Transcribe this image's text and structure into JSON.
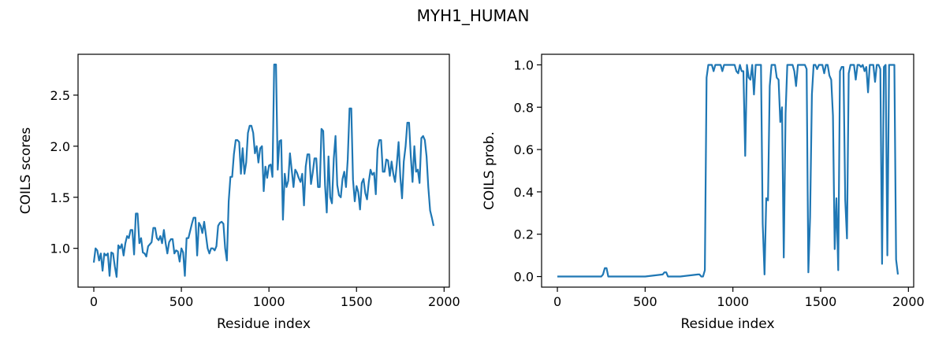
{
  "figure_title": "MYH1_HUMAN",
  "series_color": "#1f77b4",
  "chart_data": [
    {
      "type": "line",
      "title": "",
      "xlabel": "Residue index",
      "ylabel": "COILS scores",
      "xlim": [
        -90,
        2030
      ],
      "ylim": [
        0.62,
        2.9
      ],
      "xticks": [
        0,
        500,
        1000,
        1500,
        2000
      ],
      "xtick_labels": [
        "0",
        "500",
        "1000",
        "1500",
        "2000"
      ],
      "yticks": [
        1.0,
        1.5,
        2.0,
        2.5
      ],
      "ytick_labels": [
        "1.0",
        "1.5",
        "2.0",
        "2.5"
      ],
      "series": [
        {
          "x": [
            0,
            10,
            20,
            30,
            40,
            50,
            60,
            70,
            80,
            90,
            100,
            110,
            120,
            130,
            140,
            150,
            160,
            170,
            180,
            190,
            200,
            210,
            220,
            230,
            240,
            250,
            260,
            270,
            280,
            290,
            300,
            310,
            320,
            330,
            340,
            350,
            360,
            370,
            380,
            390,
            400,
            410,
            420,
            430,
            440,
            450,
            460,
            470,
            480,
            490,
            500,
            510,
            520,
            530,
            540,
            550,
            560,
            570,
            580,
            590,
            600,
            610,
            620,
            630,
            640,
            650,
            660,
            670,
            680,
            690,
            700,
            710,
            720,
            730,
            740,
            750,
            760,
            770,
            780,
            790,
            800,
            810,
            820,
            830,
            840,
            850,
            860,
            870,
            880,
            890,
            900,
            910,
            920,
            930,
            940,
            950,
            960,
            970,
            980,
            990,
            1000,
            1010,
            1020,
            1030,
            1040,
            1050,
            1060,
            1070,
            1080,
            1090,
            1100,
            1110,
            1120,
            1130,
            1140,
            1150,
            1160,
            1170,
            1180,
            1190,
            1200,
            1210,
            1220,
            1230,
            1240,
            1250,
            1260,
            1270,
            1280,
            1290,
            1300,
            1310,
            1320,
            1330,
            1340,
            1350,
            1360,
            1370,
            1380,
            1390,
            1400,
            1410,
            1420,
            1430,
            1440,
            1450,
            1460,
            1470,
            1480,
            1490,
            1500,
            1510,
            1520,
            1530,
            1540,
            1550,
            1560,
            1570,
            1580,
            1590,
            1600,
            1610,
            1620,
            1630,
            1640,
            1650,
            1660,
            1670,
            1680,
            1690,
            1700,
            1710,
            1720,
            1730,
            1740,
            1750,
            1760,
            1770,
            1780,
            1790,
            1800,
            1810,
            1820,
            1830,
            1840,
            1850,
            1860,
            1870,
            1880,
            1890,
            1900,
            1910,
            1920,
            1930,
            1940
          ],
          "y": [
            0.86,
            1.0,
            0.98,
            0.88,
            0.95,
            0.78,
            0.95,
            0.93,
            0.95,
            0.73,
            0.96,
            0.95,
            0.82,
            0.72,
            1.03,
            1.0,
            1.04,
            0.93,
            1.05,
            1.12,
            1.1,
            1.18,
            1.18,
            0.94,
            1.34,
            1.34,
            1.05,
            1.1,
            0.96,
            0.95,
            0.92,
            1.02,
            1.04,
            1.06,
            1.2,
            1.2,
            1.1,
            1.08,
            1.12,
            1.05,
            1.18,
            1.05,
            0.95,
            1.06,
            1.09,
            1.09,
            0.95,
            0.98,
            0.97,
            0.87,
            1.0,
            0.96,
            0.73,
            1.1,
            1.1,
            1.17,
            1.24,
            1.3,
            1.3,
            0.93,
            1.25,
            1.22,
            1.15,
            1.26,
            1.13,
            1.0,
            0.95,
            1.0,
            1.0,
            0.98,
            1.02,
            1.22,
            1.25,
            1.26,
            1.24,
            1.0,
            0.88,
            1.46,
            1.7,
            1.7,
            1.92,
            2.06,
            2.06,
            2.04,
            1.73,
            1.98,
            1.73,
            1.84,
            2.13,
            2.2,
            2.2,
            2.13,
            1.93,
            2.0,
            1.84,
            1.98,
            2.0,
            1.56,
            1.8,
            1.69,
            1.81,
            1.82,
            1.7,
            2.8,
            2.8,
            1.77,
            2.05,
            2.06,
            1.28,
            1.73,
            1.6,
            1.66,
            1.93,
            1.77,
            1.6,
            1.77,
            1.74,
            1.69,
            1.65,
            1.73,
            1.42,
            1.8,
            1.92,
            1.92,
            1.63,
            1.74,
            1.88,
            1.88,
            1.6,
            1.6,
            2.17,
            2.15,
            1.62,
            1.35,
            1.9,
            1.5,
            1.44,
            1.88,
            2.1,
            1.62,
            1.52,
            1.5,
            1.68,
            1.75,
            1.6,
            1.87,
            2.37,
            2.37,
            1.67,
            1.46,
            1.61,
            1.55,
            1.38,
            1.64,
            1.68,
            1.54,
            1.48,
            1.65,
            1.77,
            1.72,
            1.74,
            1.53,
            1.97,
            2.06,
            2.06,
            1.75,
            1.75,
            1.87,
            1.86,
            1.71,
            1.85,
            1.73,
            1.65,
            1.82,
            2.04,
            1.7,
            1.49,
            1.85,
            2.0,
            2.23,
            2.23,
            1.9,
            1.65,
            2.0,
            1.75,
            1.77,
            1.64,
            2.08,
            2.1,
            2.06,
            1.9,
            1.6,
            1.37,
            1.3,
            1.22
          ]
        }
      ]
    },
    {
      "type": "line",
      "title": "",
      "xlabel": "Residue index",
      "ylabel": "COILS prob.",
      "xlim": [
        -90,
        2030
      ],
      "ylim": [
        -0.05,
        1.05
      ],
      "xticks": [
        0,
        500,
        1000,
        1500,
        2000
      ],
      "xtick_labels": [
        "0",
        "500",
        "1000",
        "1500",
        "2000"
      ],
      "yticks": [
        0.0,
        0.2,
        0.4,
        0.6,
        0.8,
        1.0
      ],
      "ytick_labels": [
        "0.0",
        "0.2",
        "0.4",
        "0.6",
        "0.8",
        "1.0"
      ],
      "series": [
        {
          "x": [
            0,
            100,
            200,
            250,
            260,
            270,
            280,
            290,
            300,
            400,
            500,
            600,
            610,
            620,
            630,
            640,
            650,
            700,
            800,
            810,
            820,
            830,
            840,
            850,
            860,
            870,
            880,
            890,
            900,
            910,
            920,
            930,
            940,
            950,
            1000,
            1010,
            1020,
            1030,
            1040,
            1050,
            1060,
            1070,
            1080,
            1090,
            1100,
            1110,
            1120,
            1130,
            1140,
            1150,
            1160,
            1170,
            1180,
            1190,
            1200,
            1210,
            1220,
            1230,
            1240,
            1250,
            1260,
            1270,
            1280,
            1290,
            1300,
            1310,
            1320,
            1330,
            1340,
            1350,
            1360,
            1370,
            1380,
            1390,
            1400,
            1410,
            1420,
            1430,
            1440,
            1450,
            1460,
            1470,
            1480,
            1490,
            1500,
            1510,
            1520,
            1530,
            1540,
            1550,
            1560,
            1570,
            1580,
            1590,
            1600,
            1610,
            1620,
            1630,
            1640,
            1650,
            1660,
            1670,
            1680,
            1690,
            1700,
            1710,
            1720,
            1730,
            1740,
            1750,
            1760,
            1770,
            1780,
            1790,
            1800,
            1810,
            1820,
            1830,
            1840,
            1850,
            1860,
            1870,
            1880,
            1890,
            1900,
            1910,
            1920,
            1930,
            1940
          ],
          "y": [
            0.0,
            0.0,
            0.0,
            0.0,
            0.01,
            0.04,
            0.04,
            0.0,
            0.0,
            0.0,
            0.0,
            0.01,
            0.02,
            0.02,
            0.0,
            0.0,
            0.0,
            0.0,
            0.01,
            0.01,
            0.0,
            0.0,
            0.03,
            0.94,
            1.0,
            1.0,
            1.0,
            0.97,
            1.0,
            1.0,
            1.0,
            1.0,
            0.97,
            1.0,
            1.0,
            1.0,
            0.97,
            0.96,
            1.0,
            0.97,
            0.97,
            0.57,
            1.0,
            0.94,
            0.93,
            1.0,
            0.86,
            1.0,
            1.0,
            1.0,
            1.0,
            0.25,
            0.01,
            0.37,
            0.36,
            0.9,
            1.0,
            1.0,
            1.0,
            0.94,
            0.93,
            0.73,
            0.8,
            0.09,
            0.77,
            1.0,
            1.0,
            1.0,
            1.0,
            0.97,
            0.9,
            1.0,
            1.0,
            1.0,
            1.0,
            1.0,
            0.98,
            0.02,
            0.28,
            0.86,
            1.0,
            1.0,
            0.98,
            1.0,
            1.0,
            1.0,
            0.96,
            1.0,
            1.0,
            0.95,
            0.93,
            0.76,
            0.13,
            0.37,
            0.03,
            0.97,
            0.99,
            0.99,
            0.36,
            0.18,
            0.96,
            1.0,
            1.0,
            1.0,
            0.93,
            1.0,
            1.0,
            0.99,
            1.0,
            0.97,
            0.99,
            0.87,
            1.0,
            1.0,
            1.0,
            0.92,
            1.0,
            1.0,
            0.98,
            0.06,
            0.99,
            1.0,
            0.1,
            1.0,
            1.0,
            1.0,
            1.0,
            0.08,
            0.01
          ]
        }
      ]
    }
  ]
}
